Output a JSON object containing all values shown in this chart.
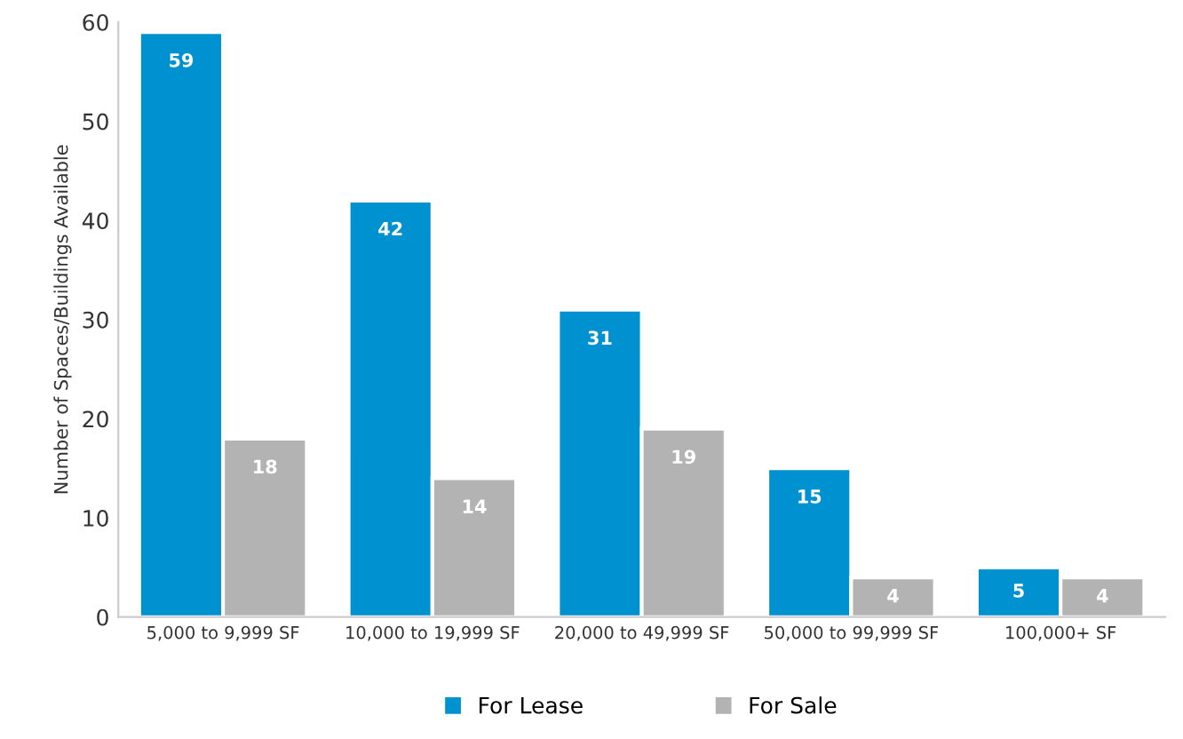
{
  "chart_data": {
    "type": "bar",
    "ylabel": "Number of Spaces/Buildings Available",
    "categories": [
      "5,000 to 9,999 SF",
      "10,000 to 19,999 SF",
      "20,000 to 49,999 SF",
      "50,000 to 99,999 SF",
      "100,000+ SF"
    ],
    "series": [
      {
        "name": "For Lease",
        "color": "#0092d0",
        "values": [
          59,
          42,
          31,
          15,
          5
        ]
      },
      {
        "name": "For Sale",
        "color": "#b3b3b3",
        "values": [
          18,
          14,
          19,
          4,
          4
        ]
      }
    ],
    "ylim": [
      0,
      60
    ],
    "yticks": [
      0,
      10,
      20,
      30,
      40,
      50,
      60
    ],
    "data_labels": true,
    "legend": "bottom",
    "grid": false
  }
}
